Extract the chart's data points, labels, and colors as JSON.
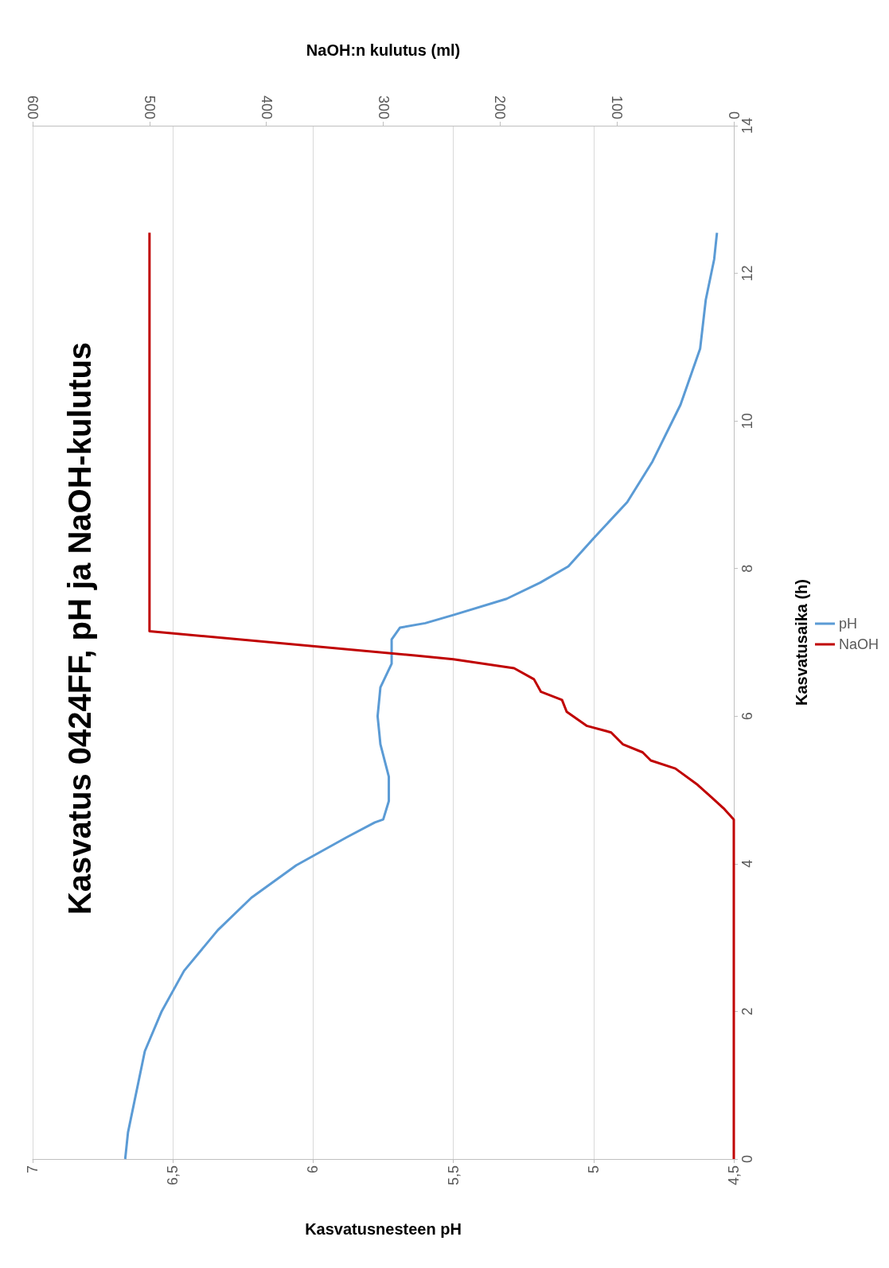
{
  "chart_data": {
    "type": "line",
    "title": "Kasvatus 0424FF, pH ja NaOH-kulutus",
    "xlabel": "Kasvatusnesteen pH",
    "x2label": "NaOH:n kulutus (ml)",
    "ylabel": "Kasvatusaika (h)",
    "xlim": [
      7,
      4.5
    ],
    "xticks": [
      7,
      {
        "value": 6.5,
        "label": "6,5"
      },
      6,
      {
        "value": 5.5,
        "label": "5,5"
      },
      5,
      {
        "value": 4.5,
        "label": "4,5"
      }
    ],
    "x2lim": [
      600,
      0
    ],
    "x2ticks": [
      600,
      500,
      400,
      300,
      200,
      100,
      0
    ],
    "ylim": [
      0,
      14
    ],
    "yticks": [
      0,
      2,
      4,
      6,
      8,
      10,
      12,
      14
    ],
    "grid": "x",
    "legend": "right",
    "marker": "none",
    "line_style": "solid",
    "series": [
      {
        "name": "pH",
        "color": "#5b9bd5",
        "x": [
          6.67,
          6.66,
          6.6,
          6.54,
          6.46,
          6.34,
          6.22,
          6.06,
          5.88,
          5.78,
          5.75,
          5.73,
          5.73,
          5.76,
          5.77,
          5.76,
          5.72,
          5.72,
          5.69,
          5.6,
          5.5,
          5.31,
          5.19,
          5.09,
          5.0,
          4.88,
          4.79,
          4.69,
          4.62,
          4.6,
          4.57,
          4.56
        ],
        "values": [
          0,
          0.36,
          1.46,
          2.0,
          2.55,
          3.1,
          3.54,
          3.98,
          4.36,
          4.56,
          4.6,
          4.85,
          5.18,
          5.62,
          6.0,
          6.39,
          6.71,
          7.04,
          7.2,
          7.26,
          7.37,
          7.59,
          7.81,
          8.03,
          8.41,
          8.9,
          9.45,
          10.22,
          10.98,
          11.64,
          12.19,
          12.55
        ]
      },
      {
        "name": "NaOH",
        "color": "#c00000",
        "axis": "x2",
        "x": [
          0,
          0,
          8,
          19,
          31,
          50,
          71,
          78,
          95,
          105,
          126,
          143,
          147,
          165,
          171,
          188,
          240,
          271,
          500,
          500
        ],
        "values": [
          0,
          4.6,
          4.74,
          4.9,
          5.07,
          5.29,
          5.4,
          5.51,
          5.62,
          5.78,
          5.87,
          6.06,
          6.22,
          6.33,
          6.5,
          6.65,
          6.77,
          6.82,
          7.15,
          12.55
        ]
      }
    ]
  }
}
